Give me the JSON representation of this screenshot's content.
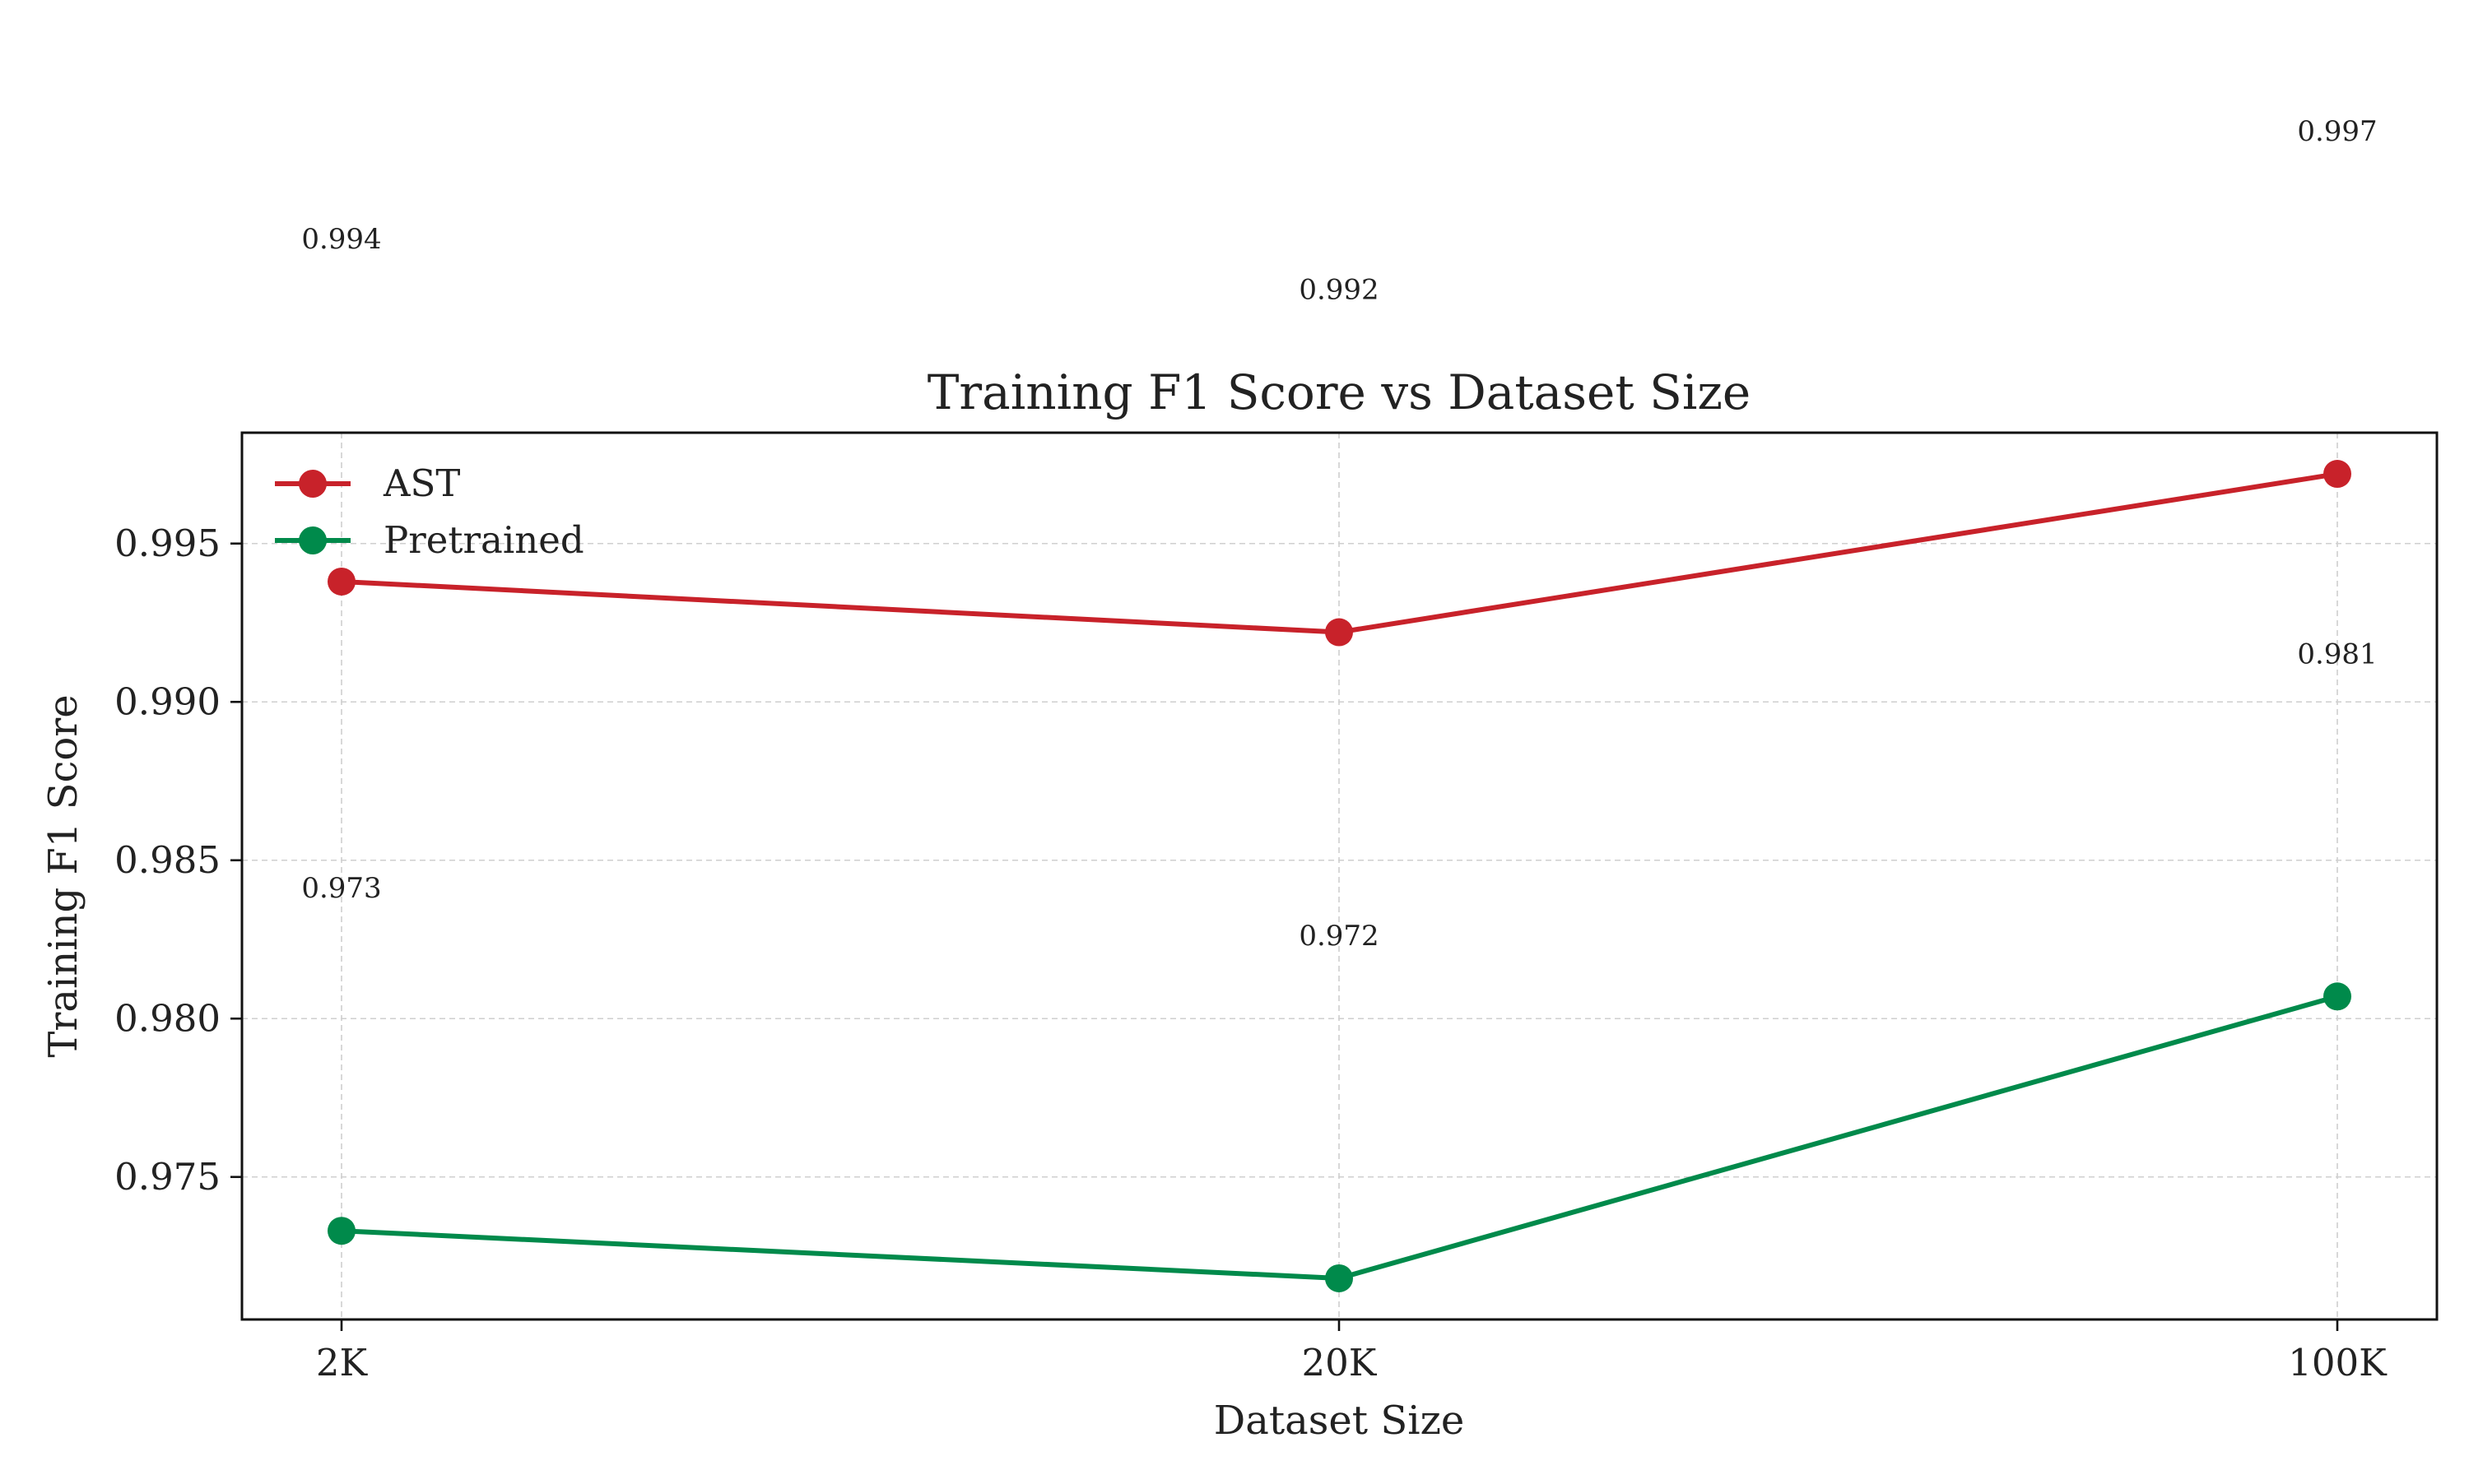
{
  "chart_data": {
    "type": "line",
    "title": "Training F1 Score vs Dataset Size",
    "xlabel": "Dataset Size",
    "ylabel": "Training F1 Score",
    "categories": [
      "2K",
      "20K",
      "100K"
    ],
    "y_ticks": [
      "0.975",
      "0.980",
      "0.985",
      "0.990",
      "0.995"
    ],
    "ylim": [
      0.9705,
      0.9985
    ],
    "grid": true,
    "legend_position": "top-left",
    "series": [
      {
        "name": "AST",
        "color": "#c8222a",
        "values": [
          0.9938,
          0.9922,
          0.9972
        ],
        "labels": [
          "0.994",
          "0.992",
          "0.997"
        ]
      },
      {
        "name": "Pretrained",
        "color": "#008a4b",
        "values": [
          0.9733,
          0.9718,
          0.9807
        ],
        "labels": [
          "0.973",
          "0.972",
          "0.981"
        ]
      }
    ]
  }
}
